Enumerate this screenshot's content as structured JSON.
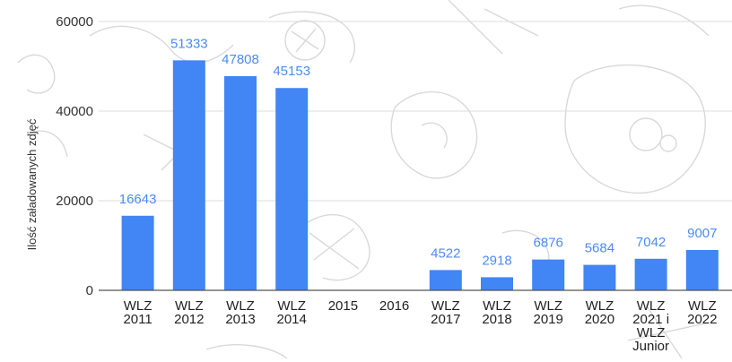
{
  "chart_data": {
    "type": "bar",
    "title": "",
    "xlabel": "",
    "ylabel": "Ilość załadowanych zdjęć",
    "ylim": [
      0,
      60000
    ],
    "yticks": [
      0,
      20000,
      40000,
      60000
    ],
    "grid": true,
    "legend": "none",
    "bar_color": "#4285f4",
    "label_color": "#4c8bf5",
    "categories": [
      [
        "WLZ",
        "2011"
      ],
      [
        "WLZ",
        "2012"
      ],
      [
        "WLZ",
        "2013"
      ],
      [
        "WLZ",
        "2014"
      ],
      [
        "2015"
      ],
      [
        "2016"
      ],
      [
        "WLZ",
        "2017"
      ],
      [
        "WLZ",
        "2018"
      ],
      [
        "WLZ",
        "2019"
      ],
      [
        "WLZ",
        "2020"
      ],
      [
        "WLZ",
        "2021 i",
        "WLZ",
        "Junior"
      ],
      [
        "WLZ",
        "2022"
      ]
    ],
    "values": [
      16643,
      51333,
      47808,
      45153,
      null,
      null,
      4522,
      2918,
      6876,
      5684,
      7042,
      9007
    ]
  }
}
